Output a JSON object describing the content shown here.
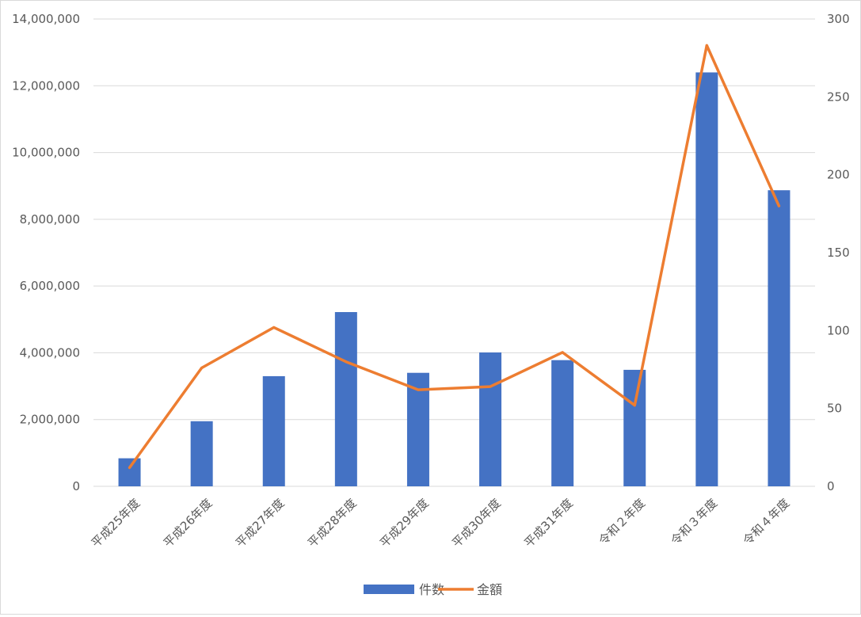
{
  "chart_data": {
    "type": "bar",
    "categories": [
      "平成25年度",
      "平成26年度",
      "平成27年度",
      "平成28年度",
      "平成29年度",
      "平成30年度",
      "平成31年度",
      "令和２年度",
      "令和３年度",
      "令和４年度"
    ],
    "series": [
      {
        "name": "件数",
        "type": "bar",
        "axis": "left",
        "color": "#4472C4",
        "values": [
          840000,
          1950000,
          3300000,
          5220000,
          3400000,
          4010000,
          3780000,
          3490000,
          12400000,
          8870000
        ]
      },
      {
        "name": "金額",
        "type": "line",
        "axis": "right",
        "color": "#ED7D31",
        "values": [
          12,
          76,
          102,
          80,
          62,
          64,
          86,
          52,
          283,
          180
        ]
      }
    ],
    "y_left": {
      "range": [
        0,
        14000000
      ],
      "ticks": [
        "0",
        "2,000,000",
        "4,000,000",
        "6,000,000",
        "8,000,000",
        "10,000,000",
        "12,000,000",
        "14,000,000"
      ]
    },
    "y_right": {
      "range": [
        0,
        300
      ],
      "ticks": [
        "0",
        "50",
        "100",
        "150",
        "200",
        "250",
        "300"
      ]
    },
    "grid": true,
    "legend_position": "bottom"
  }
}
